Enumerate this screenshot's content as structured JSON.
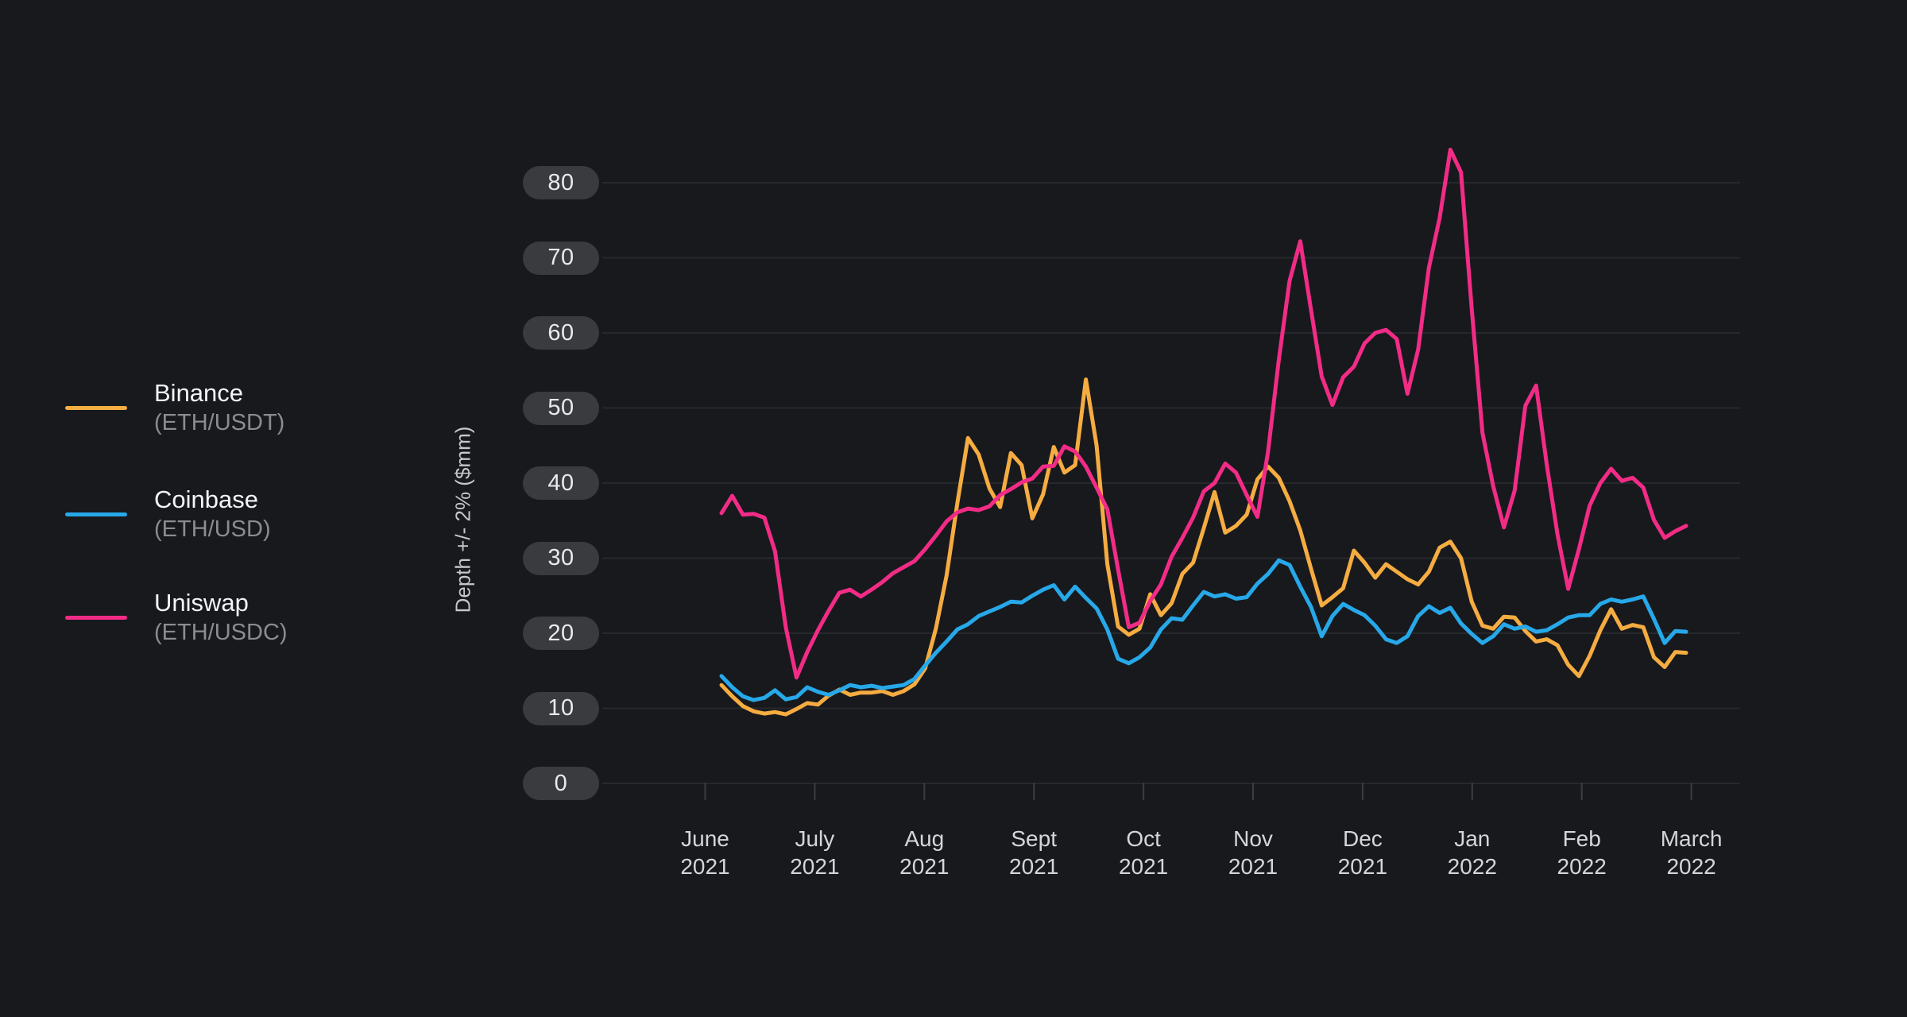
{
  "y_axis": {
    "title": "Depth +/- 2% ($mm)",
    "tick_labels": [
      "80",
      "70",
      "60",
      "50",
      "40",
      "30",
      "20",
      "10",
      "0"
    ],
    "tick_values": [
      80,
      70,
      60,
      50,
      40,
      30,
      20,
      10,
      0
    ]
  },
  "x_axis": {
    "labels": [
      {
        "month": "June",
        "year": "2021"
      },
      {
        "month": "July",
        "year": "2021"
      },
      {
        "month": "Aug",
        "year": "2021"
      },
      {
        "month": "Sept",
        "year": "2021"
      },
      {
        "month": "Oct",
        "year": "2021"
      },
      {
        "month": "Nov",
        "year": "2021"
      },
      {
        "month": "Dec",
        "year": "2021"
      },
      {
        "month": "Jan",
        "year": "2022"
      },
      {
        "month": "Feb",
        "year": "2022"
      },
      {
        "month": "March",
        "year": "2022"
      }
    ]
  },
  "legend": {
    "items": [
      {
        "name": "Binance",
        "pair": "(ETH/USDT)",
        "color": "#f5ac41"
      },
      {
        "name": "Coinbase",
        "pair": "(ETH/USD)",
        "color": "#27a8e9"
      },
      {
        "name": "Uniswap",
        "pair": "(ETH/USDC)",
        "color": "#f22c86"
      }
    ]
  },
  "colors": {
    "background": "#18191d",
    "gridline": "#27282c",
    "tick": "#3c3d41",
    "pill_bg": "#3a3b3f",
    "pill_text": "#e9eaec",
    "axis_text": "#d5d6d8"
  },
  "chart_data": {
    "type": "line",
    "title": "",
    "xlabel": "",
    "ylabel": "Depth +/- 2% ($mm)",
    "ylim": [
      0,
      90
    ],
    "grid": "horizontal",
    "legend_position": "left",
    "x_unit": "date, weekly-interpolated samples June 2021 - March 2022",
    "x_months": [
      "June 2021",
      "July 2021",
      "Aug 2021",
      "Sept 2021",
      "Oct 2021",
      "Nov 2021",
      "Dec 2021",
      "Jan 2022",
      "Feb 2022",
      "March 2022"
    ],
    "series": [
      {
        "name": "Binance (ETH/USDT)",
        "color": "#f5ac41",
        "values": [
          13.1,
          11.6,
          10.3,
          9.6,
          9.3,
          9.5,
          9.2,
          9.9,
          10.7,
          10.5,
          11.7,
          12.5,
          11.8,
          12.1,
          12.1,
          12.3,
          11.8,
          12.3,
          13.2,
          15.3,
          20.6,
          27.7,
          37.3,
          46.0,
          43.8,
          39.3,
          36.8,
          44.0,
          42.4,
          35.3,
          38.5,
          44.8,
          41.4,
          42.4,
          53.8,
          45.0,
          29.2,
          20.9,
          19.8,
          20.6,
          25.2,
          22.4,
          24.0,
          27.9,
          29.4,
          34.0,
          38.8,
          33.4,
          34.3,
          35.8,
          40.5,
          42.2,
          40.7,
          37.6,
          33.7,
          28.6,
          23.7,
          24.8,
          26.0,
          31.0,
          29.4,
          27.4,
          29.2,
          28.2,
          27.2,
          26.5,
          28.2,
          31.4,
          32.2,
          30.0,
          24.2,
          21.0,
          20.6,
          22.2,
          22.1,
          20.3,
          18.9,
          19.2,
          18.4,
          15.8,
          14.3,
          17.0,
          20.4,
          23.2,
          20.6,
          21.1,
          20.8,
          16.8,
          15.5,
          17.5,
          17.4
        ]
      },
      {
        "name": "Coinbase (ETH/USD)",
        "color": "#27a8e9",
        "values": [
          14.3,
          12.8,
          11.6,
          11.1,
          11.4,
          12.4,
          11.2,
          11.5,
          12.8,
          12.2,
          11.8,
          12.4,
          13.1,
          12.8,
          13.0,
          12.7,
          12.9,
          13.1,
          13.9,
          15.7,
          17.4,
          18.9,
          20.5,
          21.2,
          22.3,
          22.9,
          23.5,
          24.2,
          24.1,
          25.0,
          25.8,
          26.4,
          24.5,
          26.2,
          24.7,
          23.3,
          20.5,
          16.6,
          16.0,
          16.8,
          18.1,
          20.5,
          22.0,
          21.8,
          23.7,
          25.5,
          24.9,
          25.2,
          24.6,
          24.8,
          26.6,
          27.9,
          29.7,
          29.1,
          26.2,
          23.5,
          19.6,
          22.3,
          23.9,
          23.1,
          22.4,
          21.0,
          19.2,
          18.7,
          19.6,
          22.3,
          23.6,
          22.7,
          23.4,
          21.3,
          19.9,
          18.7,
          19.6,
          21.2,
          20.6,
          20.9,
          20.2,
          20.4,
          21.2,
          22.1,
          22.4,
          22.4,
          23.9,
          24.5,
          24.2,
          24.5,
          24.9,
          21.9,
          18.7,
          20.3,
          20.2
        ]
      },
      {
        "name": "Uniswap (ETH/USDC)",
        "color": "#f22c86",
        "values": [
          36.0,
          38.3,
          35.8,
          35.9,
          35.4,
          30.9,
          20.8,
          14.1,
          17.5,
          20.4,
          23.0,
          25.4,
          25.8,
          24.9,
          25.8,
          26.8,
          28.0,
          28.8,
          29.6,
          31.2,
          33.0,
          34.9,
          36.1,
          36.6,
          36.4,
          36.9,
          38.4,
          39.2,
          40.1,
          40.6,
          42.2,
          42.3,
          44.9,
          44.2,
          42.2,
          39.4,
          36.5,
          28.5,
          20.8,
          21.4,
          24.3,
          26.5,
          30.2,
          32.7,
          35.4,
          38.9,
          40.0,
          42.6,
          41.4,
          38.4,
          35.5,
          44.2,
          56.4,
          66.9,
          72.2,
          63.1,
          54.2,
          50.4,
          54.1,
          55.5,
          58.6,
          60.0,
          60.4,
          59.2,
          51.9,
          57.8,
          68.7,
          75.3,
          84.4,
          81.4,
          63.2,
          46.7,
          39.6,
          34.1,
          39.0,
          50.3,
          53.0,
          42.4,
          33.2,
          25.9,
          31.2,
          37.0,
          40.0,
          41.9,
          40.3,
          40.7,
          39.4,
          35.1,
          32.7,
          33.6,
          34.3
        ]
      }
    ]
  }
}
